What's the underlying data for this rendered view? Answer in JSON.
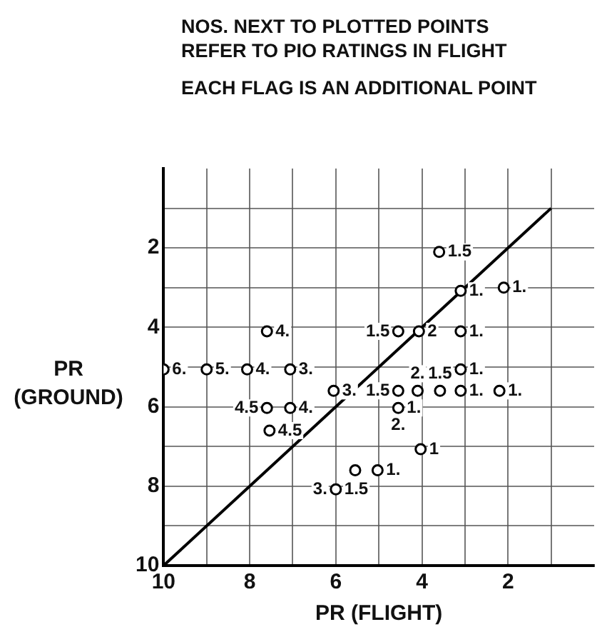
{
  "chart_data": {
    "type": "scatter",
    "xlabel": "PR (FLIGHT)",
    "ylabel": "PR\n(GROUND)",
    "xlim": [
      10,
      0
    ],
    "ylim": [
      10,
      0
    ],
    "xticks": [
      10,
      {
        "value": 9,
        "label": null
      },
      8,
      {
        "value": 7,
        "label": null
      },
      6,
      {
        "value": 5,
        "label": null
      },
      4,
      {
        "value": 3,
        "label": null
      },
      2,
      {
        "value": 1,
        "label": null
      }
    ],
    "yticks": [
      {
        "value": 1,
        "label": null
      },
      2,
      {
        "value": 3,
        "label": null
      },
      4,
      {
        "value": 5,
        "label": null
      },
      6,
      {
        "value": 7,
        "label": null
      },
      8,
      {
        "value": 9,
        "label": null
      },
      10
    ],
    "grid": true,
    "marker": "circle",
    "legend": false,
    "series": [
      {
        "color": "#000000",
        "x": [
          3.6,
          3.1,
          2.1,
          7.6,
          4.55,
          4.07,
          3.1,
          9.0,
          8.06,
          7.06,
          3.1,
          6.05,
          4.55,
          4.1,
          3.58,
          3.1,
          2.2,
          7.6,
          7.06,
          7.54,
          4.55,
          4.03,
          5.55,
          5.03,
          6.0,
          10.0
        ],
        "values": [
          2.1,
          3.08,
          3.0,
          4.1,
          4.1,
          4.1,
          4.1,
          5.06,
          5.06,
          5.06,
          5.06,
          5.6,
          5.6,
          5.6,
          5.6,
          5.6,
          5.6,
          6.03,
          6.03,
          6.6,
          6.03,
          7.07,
          7.6,
          7.6,
          8.08,
          5.06
        ]
      },
      {
        "type": "line",
        "color": "#000000",
        "x": [
          10,
          1
        ],
        "values": [
          10,
          1
        ],
        "marker": "none"
      }
    ],
    "annotations": [
      "NOS. NEXT TO PLOTTED POINTS REFER TO PIO RATINGS IN FLIGHT",
      "EACH FLAG IS AN ADDITIONAL POINT",
      {
        "text": "1.5",
        "x": 3.6,
        "y": 2.1
      },
      {
        "text": "1.",
        "x": 3.1,
        "y": 3.08
      },
      {
        "text": "1.",
        "x": 2.1,
        "y": 3.0
      },
      {
        "text": "4.",
        "x": 7.6,
        "y": 4.1
      },
      {
        "text": "1.5",
        "x": 4.55,
        "y": 4.1
      },
      {
        "text": "2",
        "x": 4.07,
        "y": 4.1
      },
      {
        "text": "1.",
        "x": 3.1,
        "y": 4.1
      },
      {
        "text": "5.",
        "x": 9.0,
        "y": 5.06
      },
      {
        "text": "4.",
        "x": 8.06,
        "y": 5.06
      },
      {
        "text": "3.",
        "x": 7.06,
        "y": 5.06
      },
      {
        "text": "1.",
        "x": 3.1,
        "y": 5.06
      },
      {
        "text": "3.",
        "x": 6.05,
        "y": 5.6
      },
      {
        "text": "1.5",
        "x": 4.55,
        "y": 5.6
      },
      {
        "text": "2.",
        "x": 4.1,
        "y": 5.6
      },
      {
        "text": "1.5",
        "x": 3.58,
        "y": 5.6
      },
      {
        "text": "1.",
        "x": 3.1,
        "y": 5.6
      },
      {
        "text": "1.",
        "x": 2.2,
        "y": 5.6
      },
      {
        "text": "4.5",
        "x": 7.6,
        "y": 6.03
      },
      {
        "text": "4.",
        "x": 7.06,
        "y": 6.03
      },
      {
        "text": "4.5",
        "x": 7.54,
        "y": 6.6
      },
      {
        "text": "1.",
        "x": 4.55,
        "y": 6.03
      },
      {
        "text": "2.",
        "x": 4.55,
        "y": 6.03
      },
      {
        "text": "1",
        "x": 4.03,
        "y": 7.07
      },
      {
        "text": "1.",
        "x": 5.03,
        "y": 7.6
      },
      {
        "text": "1.5",
        "x": 6.0,
        "y": 8.08
      },
      {
        "text": "3.",
        "x": 6.0,
        "y": 8.08
      },
      {
        "text": "6.",
        "x": 10.0,
        "y": 5.06
      }
    ]
  }
}
